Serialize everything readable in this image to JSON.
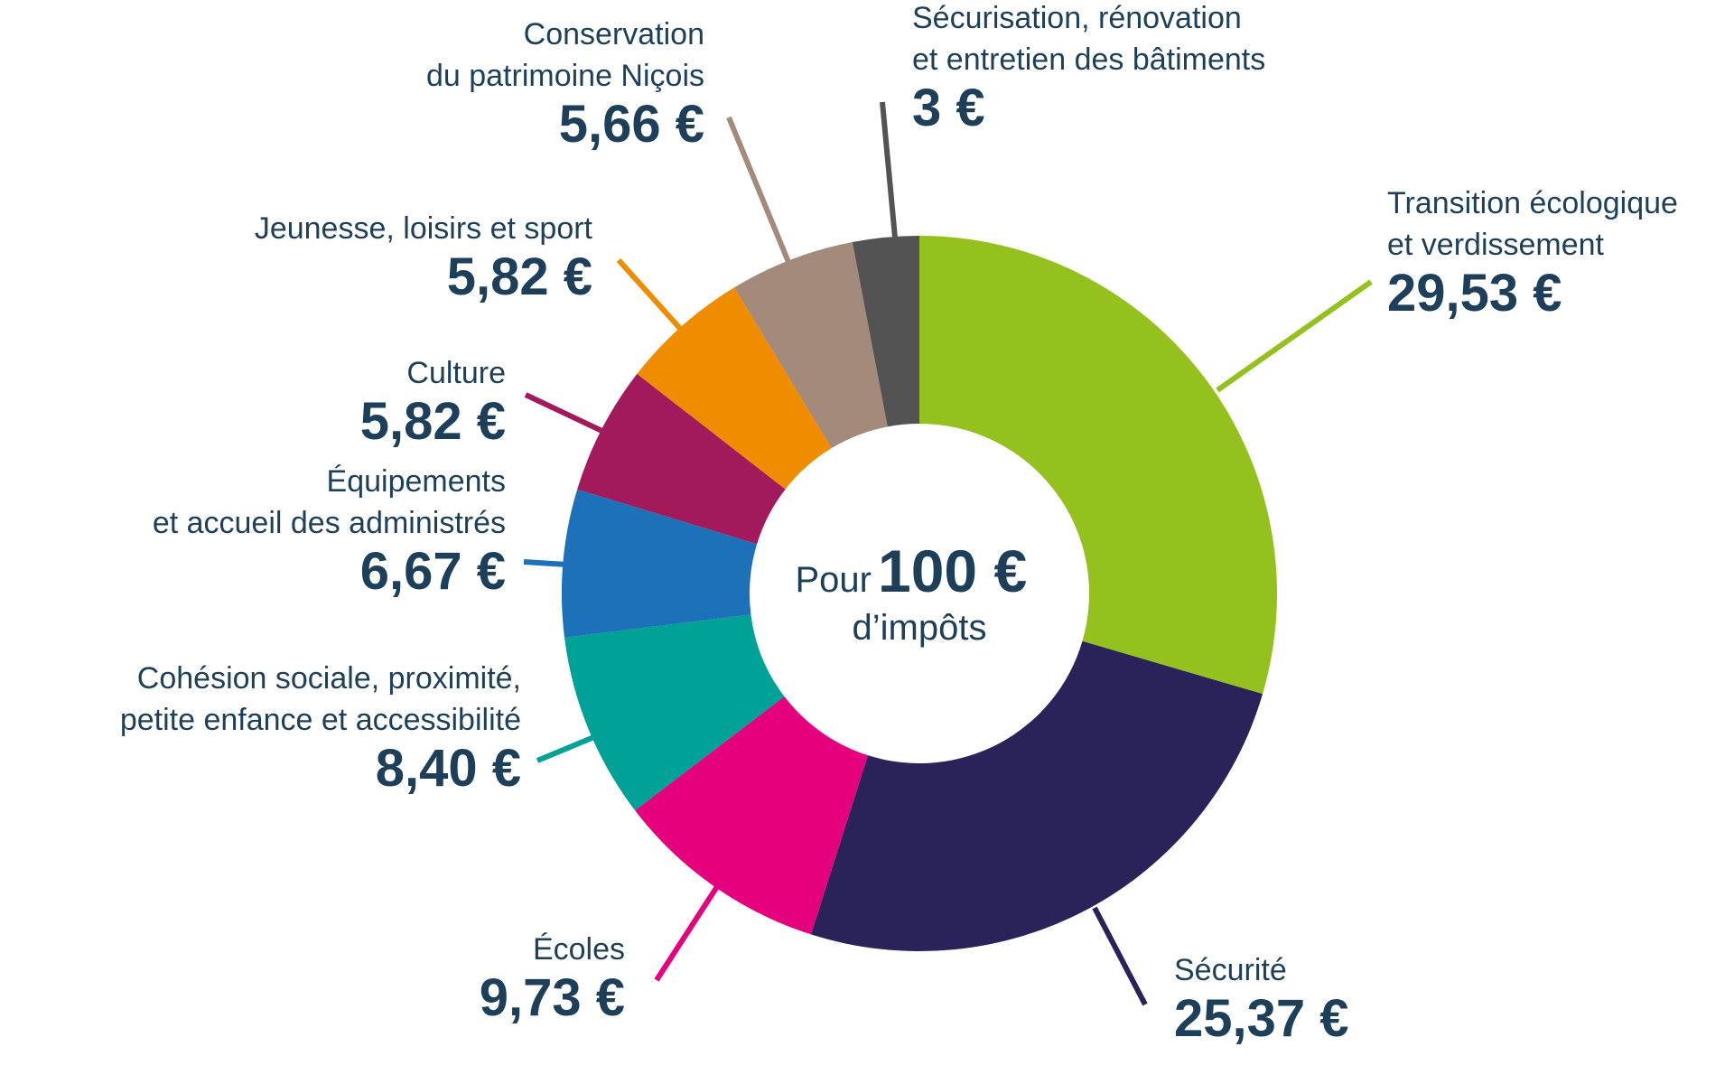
{
  "chart_data": {
    "type": "pie",
    "variant": "donut",
    "center": {
      "prefix": "Pour",
      "amount": "100 €",
      "suffix": "d’impôts"
    },
    "slices": [
      {
        "lines": [
          "Transition écologique",
          "et verdissement"
        ],
        "value": 29.53,
        "value_label": "29,53 €",
        "color": "#95c11f"
      },
      {
        "lines": [
          "Sécurité"
        ],
        "value": 25.37,
        "value_label": "25,37 €",
        "color": "#2a2359"
      },
      {
        "lines": [
          "Écoles"
        ],
        "value": 9.73,
        "value_label": "9,73 €",
        "color": "#e5007e"
      },
      {
        "lines": [
          "Cohésion sociale, proximité,",
          "petite enfance et accessibilité"
        ],
        "value": 8.4,
        "value_label": "8,40 €",
        "color": "#00a197"
      },
      {
        "lines": [
          "Équipements",
          "et accueil des administrés"
        ],
        "value": 6.67,
        "value_label": "6,67 €",
        "color": "#1d71b8"
      },
      {
        "lines": [
          "Culture"
        ],
        "value": 5.82,
        "value_label": "5,82 €",
        "color": "#a21a5b"
      },
      {
        "lines": [
          "Jeunesse, loisirs et sport"
        ],
        "value": 5.82,
        "value_label": "5,82 €",
        "color": "#ef8c00"
      },
      {
        "lines": [
          "Conservation",
          "du patrimoine Niçois"
        ],
        "value": 5.66,
        "value_label": "5,66 €",
        "color": "#a48a7b"
      },
      {
        "lines": [
          "Sécurisation, rénovation",
          "et entretien des bâtiments"
        ],
        "value": 3.0,
        "value_label": "3 €",
        "color": "#535353"
      }
    ]
  }
}
